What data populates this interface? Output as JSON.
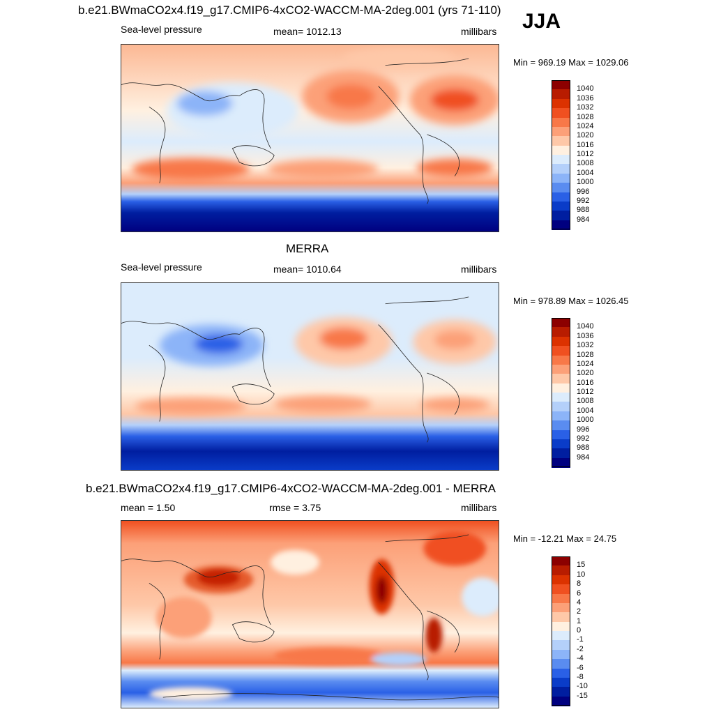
{
  "season": "JJA",
  "panels": [
    {
      "title": "b.e21.BWmaCO2x4.f19_g17.CMIP6-4xCO2-WACCM-MA-2deg.001 (yrs 71-110)",
      "left_label": "Sea-level pressure",
      "center_label": "mean= 1012.13",
      "units": "millibars",
      "minmax": "Min = 969.19 Max = 1029.06",
      "colorbar": {
        "labels": [
          "1040",
          "1036",
          "1032",
          "1028",
          "1024",
          "1020",
          "1016",
          "1012",
          "1008",
          "1004",
          "1000",
          "996",
          "992",
          "988",
          "984"
        ],
        "colors": [
          "#8c0000",
          "#b81c00",
          "#dc3200",
          "#f05020",
          "#f87848",
          "#fca078",
          "#fec8a8",
          "#fff0e0",
          "#dcecfc",
          "#b4d0fa",
          "#8cb4f8",
          "#5a8cf0",
          "#2a60e6",
          "#0a3cc8",
          "#001ea0",
          "#000080"
        ]
      }
    },
    {
      "title": "MERRA",
      "left_label": "Sea-level pressure",
      "center_label": "mean= 1010.64",
      "units": "millibars",
      "minmax": "Min = 978.89 Max = 1026.45",
      "colorbar": {
        "labels": [
          "1040",
          "1036",
          "1032",
          "1028",
          "1024",
          "1020",
          "1016",
          "1012",
          "1008",
          "1004",
          "1000",
          "996",
          "992",
          "988",
          "984"
        ],
        "colors": [
          "#8c0000",
          "#b81c00",
          "#dc3200",
          "#f05020",
          "#f87848",
          "#fca078",
          "#fec8a8",
          "#fff0e0",
          "#dcecfc",
          "#b4d0fa",
          "#8cb4f8",
          "#5a8cf0",
          "#2a60e6",
          "#0a3cc8",
          "#001ea0",
          "#000080"
        ]
      }
    },
    {
      "title": "b.e21.BWmaCO2x4.f19_g17.CMIP6-4xCO2-WACCM-MA-2deg.001 - MERRA",
      "left_label": "mean =   1.50",
      "center_label": "rmse =   3.75",
      "units": "millibars",
      "minmax": "Min = -12.21 Max =  24.75",
      "colorbar": {
        "labels": [
          "15",
          "10",
          "8",
          "6",
          "4",
          "2",
          "1",
          "0",
          "-1",
          "-2",
          "-4",
          "-6",
          "-8",
          "-10",
          "-15"
        ],
        "colors": [
          "#8c0000",
          "#b81c00",
          "#dc3200",
          "#f05020",
          "#f87848",
          "#fca078",
          "#fec8a8",
          "#fff0e0",
          "#dcecfc",
          "#b4d0fa",
          "#8cb4f8",
          "#5a8cf0",
          "#2a60e6",
          "#0a3cc8",
          "#001ea0",
          "#000080"
        ]
      }
    }
  ]
}
